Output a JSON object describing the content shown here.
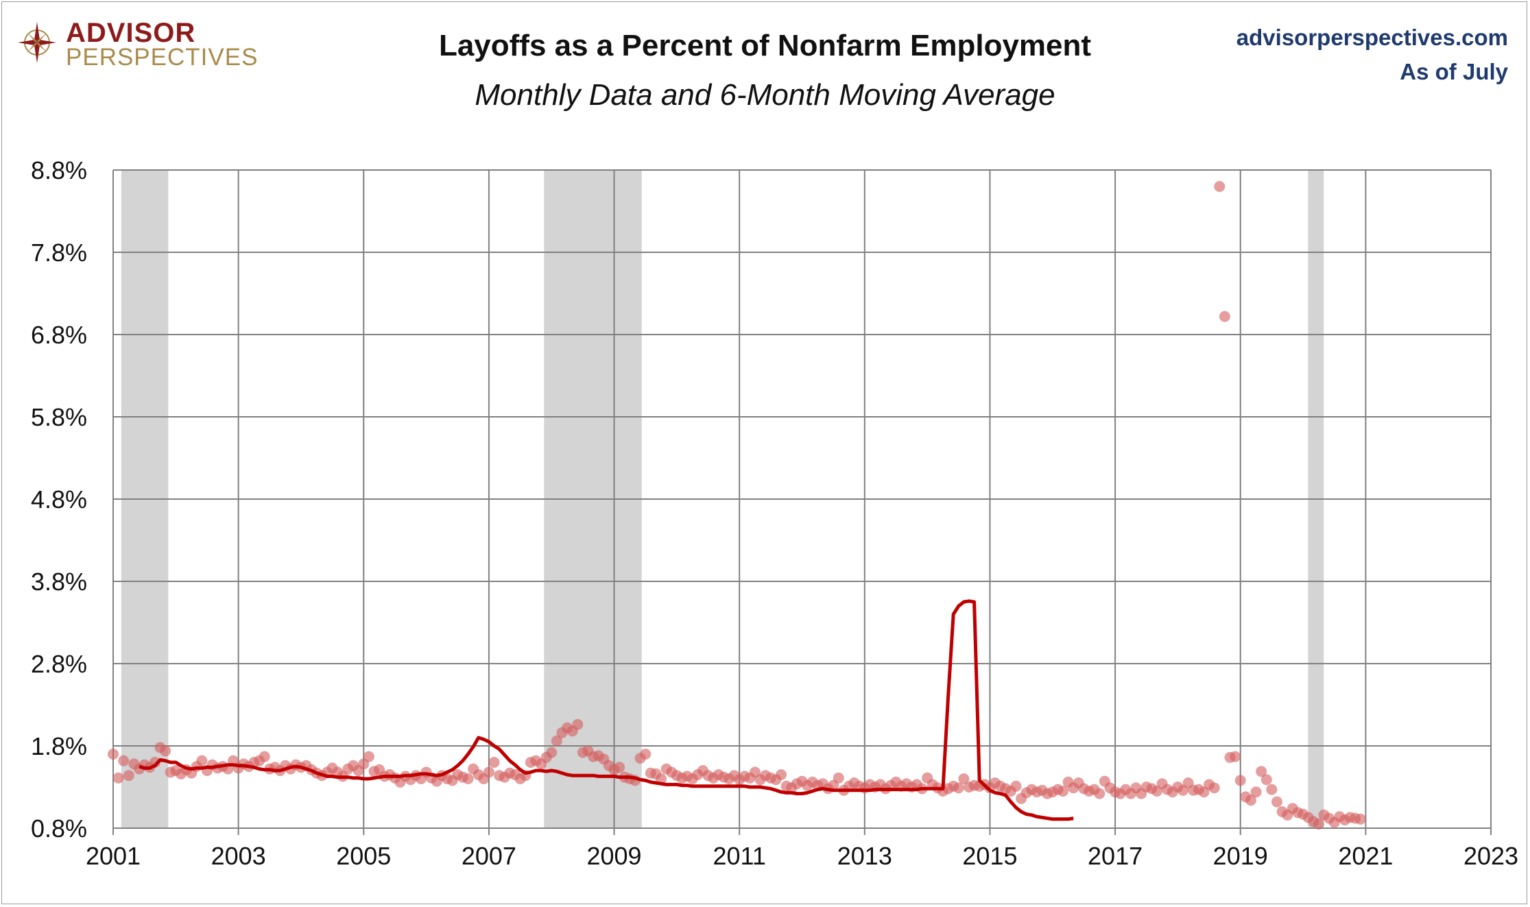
{
  "header": {
    "logo_line1": "ADVISOR",
    "logo_line2": "PERSPECTIVES",
    "title": "Layoffs as a Percent of Nonfarm Employment",
    "subtitle": "Monthly Data and 6-Month Moving Average",
    "site": "advisorperspectives.com",
    "as_of": "As of July"
  },
  "colors": {
    "points": "#d45c5c",
    "moving_average": "#c00000",
    "recession_band": "#d4d4d4",
    "grid": "#808080",
    "logo_red": "#8e1b1b",
    "logo_gold": "#a88a4a",
    "site_text": "#1f3a6e"
  },
  "chart_data": {
    "type": "scatter",
    "title": "Layoffs as a Percent of Nonfarm Employment",
    "subtitle": "Monthly Data and 6-Month Moving Average",
    "xlabel": "",
    "ylabel": "",
    "xlim": [
      2001,
      2023
    ],
    "ylim": [
      0.8,
      8.8
    ],
    "x_ticks": [
      "2001",
      "2003",
      "2005",
      "2007",
      "2009",
      "2011",
      "2013",
      "2015",
      "2017",
      "2019",
      "2021",
      "2023"
    ],
    "y_ticks": [
      "0.8%",
      "1.8%",
      "2.8%",
      "3.8%",
      "4.8%",
      "5.8%",
      "6.8%",
      "7.8%",
      "8.8%"
    ],
    "grid": true,
    "legend": "none",
    "recessions": [
      {
        "start": 2001.13,
        "end": 2001.88
      },
      {
        "start": 2007.88,
        "end": 2009.44
      },
      {
        "start": 2020.08,
        "end": 2020.33
      }
    ],
    "series": [
      {
        "type": "scatter",
        "start": "2001-01",
        "frequency": "monthly",
        "values": [
          1.7,
          1.41,
          1.62,
          1.44,
          1.58,
          1.52,
          1.57,
          1.54,
          1.6,
          1.78,
          1.74,
          1.48,
          1.5,
          1.46,
          1.51,
          1.47,
          1.55,
          1.62,
          1.5,
          1.57,
          1.53,
          1.55,
          1.52,
          1.62,
          1.53,
          1.58,
          1.55,
          1.6,
          1.62,
          1.67,
          1.52,
          1.54,
          1.5,
          1.56,
          1.52,
          1.57,
          1.54,
          1.56,
          1.51,
          1.47,
          1.44,
          1.48,
          1.53,
          1.48,
          1.43,
          1.52,
          1.56,
          1.5,
          1.58,
          1.67,
          1.49,
          1.51,
          1.43,
          1.45,
          1.41,
          1.36,
          1.43,
          1.39,
          1.44,
          1.4,
          1.48,
          1.41,
          1.37,
          1.44,
          1.4,
          1.38,
          1.45,
          1.42,
          1.4,
          1.52,
          1.45,
          1.4,
          1.48,
          1.6,
          1.44,
          1.42,
          1.47,
          1.45,
          1.4,
          1.44,
          1.6,
          1.62,
          1.58,
          1.66,
          1.72,
          1.86,
          1.96,
          2.02,
          1.98,
          2.06,
          1.72,
          1.74,
          1.67,
          1.68,
          1.64,
          1.56,
          1.51,
          1.54,
          1.42,
          1.4,
          1.38,
          1.65,
          1.7,
          1.47,
          1.46,
          1.4,
          1.52,
          1.48,
          1.44,
          1.41,
          1.43,
          1.4,
          1.45,
          1.5,
          1.44,
          1.41,
          1.45,
          1.42,
          1.4,
          1.44,
          1.39,
          1.43,
          1.41,
          1.48,
          1.39,
          1.44,
          1.41,
          1.39,
          1.45,
          1.31,
          1.29,
          1.34,
          1.37,
          1.32,
          1.36,
          1.32,
          1.34,
          1.28,
          1.32,
          1.41,
          1.26,
          1.31,
          1.35,
          1.31,
          1.29,
          1.33,
          1.3,
          1.33,
          1.28,
          1.32,
          1.36,
          1.31,
          1.34,
          1.3,
          1.33,
          1.28,
          1.41,
          1.33,
          1.29,
          1.25,
          1.28,
          1.31,
          1.29,
          1.4,
          1.3,
          1.32,
          1.31,
          1.33,
          1.29,
          1.35,
          1.31,
          1.28,
          1.25,
          1.31,
          1.16,
          1.23,
          1.27,
          1.24,
          1.26,
          1.22,
          1.24,
          1.27,
          1.25,
          1.36,
          1.29,
          1.35,
          1.28,
          1.25,
          1.27,
          1.22,
          1.37,
          1.29,
          1.24,
          1.22,
          1.27,
          1.22,
          1.29,
          1.22,
          1.3,
          1.28,
          1.25,
          1.34,
          1.27,
          1.24,
          1.3,
          1.26,
          1.35,
          1.26,
          1.27,
          1.24,
          1.33,
          1.29,
          8.6,
          7.02,
          1.66,
          1.67,
          1.38,
          1.18,
          1.14,
          1.24,
          1.49,
          1.39,
          1.27,
          1.12,
          1.0,
          0.96,
          1.04,
          0.99,
          0.97,
          0.93,
          0.88,
          0.85,
          0.96,
          0.92,
          0.87,
          0.94,
          0.9,
          0.93,
          0.92,
          0.91
        ]
      },
      {
        "type": "line",
        "name": "",
        "start": "2001-06",
        "frequency": "monthly",
        "values": [
          1.55,
          1.53,
          1.53,
          1.56,
          1.63,
          1.62,
          1.6,
          1.6,
          1.56,
          1.53,
          1.52,
          1.53,
          1.53,
          1.54,
          1.54,
          1.55,
          1.56,
          1.57,
          1.57,
          1.56,
          1.56,
          1.55,
          1.54,
          1.52,
          1.51,
          1.51,
          1.5,
          1.5,
          1.52,
          1.54,
          1.55,
          1.54,
          1.52,
          1.5,
          1.47,
          1.45,
          1.43,
          1.43,
          1.42,
          1.42,
          1.42,
          1.41,
          1.41,
          1.4,
          1.4,
          1.41,
          1.42,
          1.43,
          1.43,
          1.43,
          1.43,
          1.44,
          1.44,
          1.45,
          1.46,
          1.46,
          1.45,
          1.44,
          1.45,
          1.48,
          1.51,
          1.56,
          1.62,
          1.7,
          1.79,
          1.9,
          1.88,
          1.85,
          1.8,
          1.76,
          1.69,
          1.62,
          1.57,
          1.51,
          1.47,
          1.48,
          1.5,
          1.5,
          1.49,
          1.5,
          1.49,
          1.47,
          1.45,
          1.44,
          1.44,
          1.44,
          1.44,
          1.44,
          1.43,
          1.43,
          1.43,
          1.43,
          1.42,
          1.42,
          1.42,
          1.41,
          1.39,
          1.38,
          1.36,
          1.35,
          1.34,
          1.33,
          1.33,
          1.33,
          1.32,
          1.32,
          1.31,
          1.31,
          1.31,
          1.31,
          1.31,
          1.31,
          1.31,
          1.31,
          1.31,
          1.31,
          1.31,
          1.3,
          1.3,
          1.3,
          1.29,
          1.28,
          1.26,
          1.24,
          1.23,
          1.23,
          1.22,
          1.22,
          1.23,
          1.25,
          1.27,
          1.28,
          1.27,
          1.26,
          1.26,
          1.26,
          1.26,
          1.26,
          1.26,
          1.26,
          1.26,
          1.27,
          1.27,
          1.27,
          1.27,
          1.27,
          1.27,
          1.27,
          1.27,
          1.27,
          1.28,
          1.28,
          1.28,
          1.28,
          1.28,
          2.4,
          3.4,
          3.5,
          3.55,
          3.56,
          3.55,
          1.38,
          1.32,
          1.26,
          1.23,
          1.22,
          1.2,
          1.12,
          1.05,
          1.0,
          0.97,
          0.96,
          0.94,
          0.93,
          0.92,
          0.91,
          0.91,
          0.91,
          0.91,
          0.92
        ]
      }
    ]
  }
}
